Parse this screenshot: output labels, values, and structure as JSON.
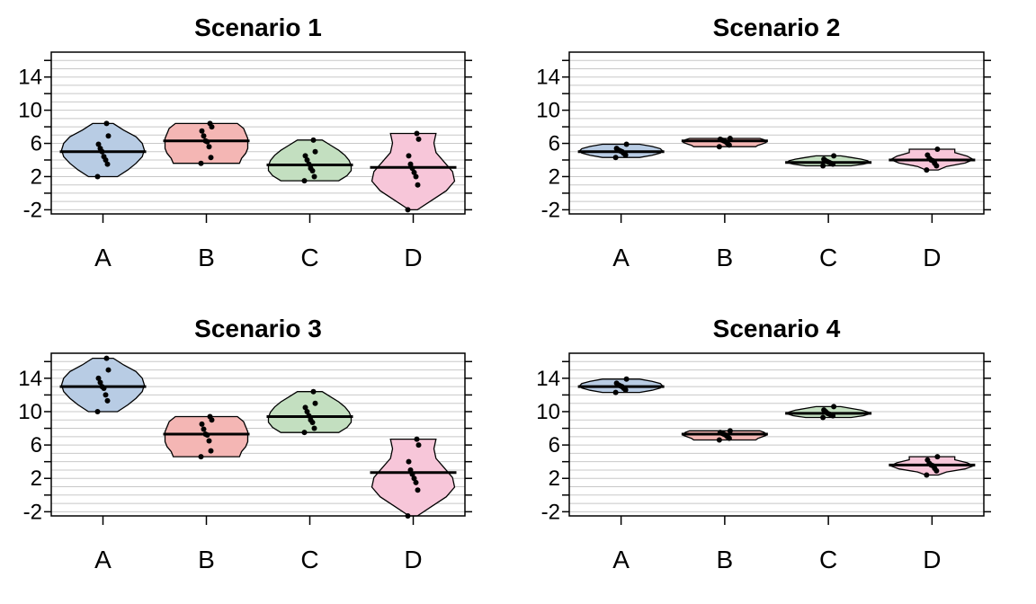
{
  "figure": {
    "background": "#ffffff"
  },
  "chart_data": [
    {
      "type": "violin",
      "title": "Scenario 1",
      "categories": [
        "A",
        "B",
        "C",
        "D"
      ],
      "ylim": [
        -2.5,
        17
      ],
      "yticks": [
        -2,
        2,
        6,
        10,
        14
      ],
      "grid": true,
      "colors": [
        "#b8cce4",
        "#f4b6b4",
        "#c3dfc0",
        "#f7c6d9"
      ],
      "series": [
        {
          "category": "A",
          "mean": 5.0,
          "min": 2.0,
          "max": 8.4,
          "points": [
            2.0,
            3.5,
            4.0,
            4.4,
            5.0,
            5.4,
            5.9,
            6.9,
            8.4
          ],
          "density": [
            0.35,
            0.6,
            0.8,
            0.95,
            1.0,
            0.95,
            0.8,
            0.5,
            0.25
          ]
        },
        {
          "category": "B",
          "mean": 6.3,
          "min": 3.6,
          "max": 8.4,
          "points": [
            3.6,
            4.3,
            5.6,
            6.2,
            6.3,
            6.9,
            7.5,
            8.0,
            8.4
          ],
          "density": [
            0.8,
            0.85,
            0.95,
            1.0,
            1.0,
            1.0,
            0.95,
            0.9,
            0.75
          ]
        },
        {
          "category": "C",
          "mean": 3.4,
          "min": 1.5,
          "max": 6.4,
          "points": [
            1.5,
            2.0,
            2.7,
            3.0,
            3.5,
            4.0,
            4.5,
            5.0,
            6.4
          ],
          "density": [
            0.7,
            0.9,
            1.0,
            1.0,
            0.95,
            0.85,
            0.7,
            0.5,
            0.3
          ]
        },
        {
          "category": "D",
          "mean": 3.1,
          "min": -2.0,
          "max": 7.2,
          "points": [
            -2.0,
            1.0,
            2.0,
            2.5,
            3.0,
            3.5,
            4.5,
            6.5,
            7.2
          ],
          "density": [
            0.1,
            0.45,
            0.8,
            1.0,
            0.95,
            0.75,
            0.55,
            0.5,
            0.55
          ]
        }
      ]
    },
    {
      "type": "violin",
      "title": "Scenario 2",
      "categories": [
        "A",
        "B",
        "C",
        "D"
      ],
      "ylim": [
        -2.5,
        17
      ],
      "yticks": [
        -2,
        2,
        6,
        10,
        14
      ],
      "grid": true,
      "colors": [
        "#b8cce4",
        "#f4b6b4",
        "#c3dfc0",
        "#f7c6d9"
      ],
      "series": [
        {
          "category": "A",
          "mean": 5.0,
          "min": 4.3,
          "max": 5.9,
          "points": [
            4.3,
            4.6,
            4.8,
            5.0,
            5.1,
            5.2,
            5.4,
            5.9
          ],
          "density": [
            0.45,
            0.75,
            0.95,
            1.0,
            0.95,
            0.75,
            0.45
          ]
        },
        {
          "category": "B",
          "mean": 6.3,
          "min": 5.6,
          "max": 6.6,
          "points": [
            5.6,
            5.8,
            6.0,
            6.2,
            6.3,
            6.4,
            6.5,
            6.6
          ],
          "density": [
            0.75,
            0.8,
            0.9,
            1.0,
            1.0,
            0.95,
            0.85
          ]
        },
        {
          "category": "C",
          "mean": 3.7,
          "min": 3.3,
          "max": 4.5,
          "points": [
            3.3,
            3.5,
            3.6,
            3.7,
            3.8,
            3.9,
            4.1,
            4.5
          ],
          "density": [
            0.55,
            0.85,
            1.0,
            0.95,
            0.8,
            0.55,
            0.3
          ]
        },
        {
          "category": "D",
          "mean": 4.0,
          "min": 2.8,
          "max": 5.3,
          "points": [
            2.8,
            3.3,
            3.6,
            3.9,
            4.0,
            4.2,
            4.6,
            5.3
          ],
          "density": [
            0.15,
            0.35,
            0.8,
            1.0,
            0.85,
            0.55,
            0.55
          ]
        }
      ]
    },
    {
      "type": "violin",
      "title": "Scenario 3",
      "categories": [
        "A",
        "B",
        "C",
        "D"
      ],
      "ylim": [
        -2.5,
        17
      ],
      "yticks": [
        -2,
        2,
        6,
        10,
        14
      ],
      "grid": true,
      "colors": [
        "#b8cce4",
        "#f4b6b4",
        "#c3dfc0",
        "#f7c6d9"
      ],
      "series": [
        {
          "category": "A",
          "mean": 13.0,
          "min": 10.0,
          "max": 16.4,
          "points": [
            10.0,
            11.3,
            12.0,
            12.8,
            13.0,
            13.5,
            14.0,
            15.0,
            16.4
          ],
          "density": [
            0.35,
            0.6,
            0.8,
            0.95,
            1.0,
            0.95,
            0.8,
            0.5,
            0.25
          ]
        },
        {
          "category": "B",
          "mean": 7.3,
          "min": 4.6,
          "max": 9.4,
          "points": [
            4.6,
            5.3,
            6.5,
            7.2,
            7.3,
            7.9,
            8.5,
            9.0,
            9.4
          ],
          "density": [
            0.8,
            0.85,
            0.95,
            1.0,
            1.0,
            1.0,
            0.95,
            0.9,
            0.75
          ]
        },
        {
          "category": "C",
          "mean": 9.4,
          "min": 7.5,
          "max": 12.4,
          "points": [
            7.5,
            8.0,
            8.7,
            9.0,
            9.5,
            10.0,
            10.5,
            11.0,
            12.4
          ],
          "density": [
            0.7,
            0.9,
            1.0,
            1.0,
            0.95,
            0.85,
            0.7,
            0.5,
            0.3
          ]
        },
        {
          "category": "D",
          "mean": 2.7,
          "min": -2.5,
          "max": 6.7,
          "points": [
            -2.5,
            0.6,
            1.5,
            2.0,
            2.5,
            3.0,
            4.0,
            6.0,
            6.7
          ],
          "density": [
            0.1,
            0.45,
            0.8,
            1.0,
            0.95,
            0.75,
            0.55,
            0.5,
            0.55
          ]
        }
      ]
    },
    {
      "type": "violin",
      "title": "Scenario 4",
      "categories": [
        "A",
        "B",
        "C",
        "D"
      ],
      "ylim": [
        -2.5,
        17
      ],
      "yticks": [
        -2,
        2,
        6,
        10,
        14
      ],
      "grid": true,
      "colors": [
        "#b8cce4",
        "#f4b6b4",
        "#c3dfc0",
        "#f7c6d9"
      ],
      "series": [
        {
          "category": "A",
          "mean": 13.0,
          "min": 12.3,
          "max": 13.9,
          "points": [
            12.3,
            12.6,
            12.8,
            13.0,
            13.1,
            13.2,
            13.4,
            13.9
          ],
          "density": [
            0.45,
            0.75,
            0.95,
            1.0,
            0.95,
            0.75,
            0.45
          ]
        },
        {
          "category": "B",
          "mean": 7.3,
          "min": 6.6,
          "max": 7.7,
          "points": [
            6.6,
            6.8,
            7.0,
            7.2,
            7.3,
            7.4,
            7.5,
            7.7
          ],
          "density": [
            0.75,
            0.8,
            0.9,
            1.0,
            1.0,
            0.95,
            0.85
          ]
        },
        {
          "category": "C",
          "mean": 9.8,
          "min": 9.3,
          "max": 10.6,
          "points": [
            9.3,
            9.5,
            9.6,
            9.7,
            9.8,
            10.0,
            10.2,
            10.6
          ],
          "density": [
            0.55,
            0.85,
            1.0,
            0.95,
            0.8,
            0.55,
            0.3
          ]
        },
        {
          "category": "D",
          "mean": 3.6,
          "min": 2.4,
          "max": 4.6,
          "points": [
            2.4,
            2.9,
            3.2,
            3.5,
            3.6,
            3.8,
            4.2,
            4.6
          ],
          "density": [
            0.15,
            0.35,
            0.8,
            1.0,
            0.85,
            0.55,
            0.55
          ]
        }
      ]
    }
  ]
}
